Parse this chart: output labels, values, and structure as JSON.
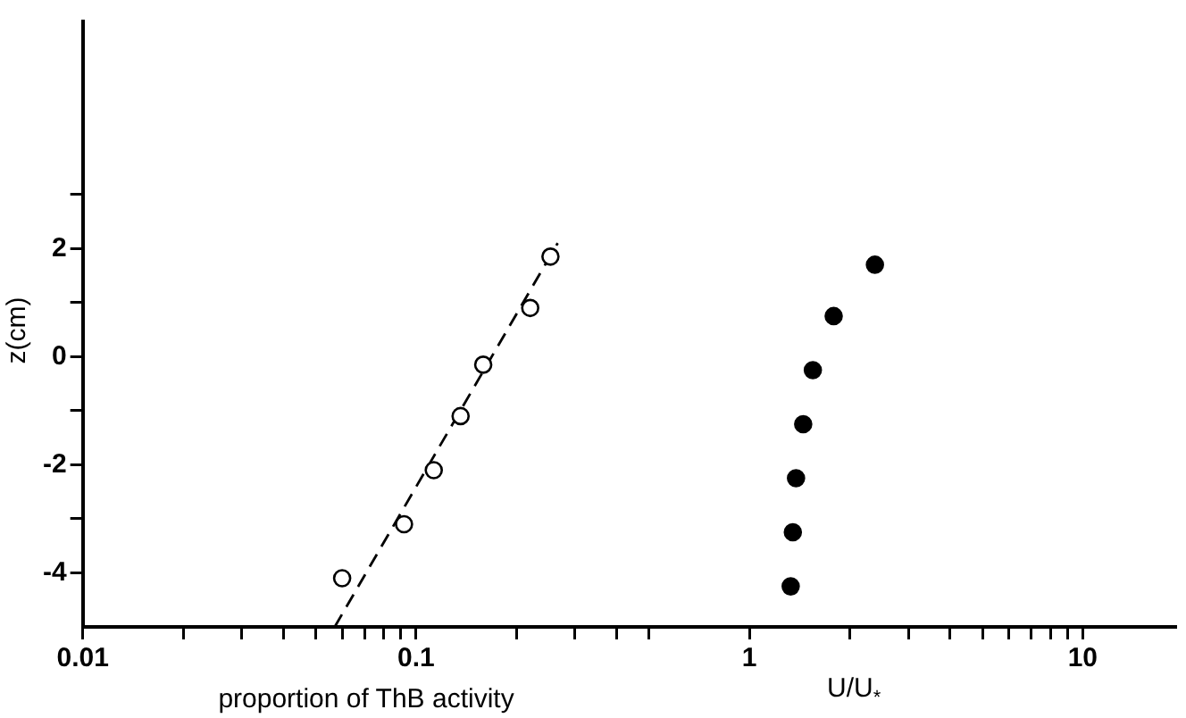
{
  "chart_data": {
    "type": "scatter",
    "xlabel": "proportion of ThB activity",
    "ylabel": "z(cm)",
    "annotations": [
      "U/U$_{*}$"
    ],
    "log": "x",
    "grid": false,
    "legend": false,
    "marker": "circle",
    "xlim": [
      0.01,
      19
    ],
    "ylim": [
      -5,
      6.2
    ],
    "xticks": [
      0.01,
      {
        "value": 0.02,
        "label": null
      },
      {
        "value": 0.03,
        "label": null
      },
      {
        "value": 0.04,
        "label": null
      },
      {
        "value": 0.05,
        "label": null
      },
      {
        "value": 0.06,
        "label": null
      },
      {
        "value": 0.07,
        "label": null
      },
      {
        "value": 0.08,
        "label": null
      },
      {
        "value": 0.09,
        "label": null
      },
      0.1,
      {
        "value": 0.2,
        "label": null
      },
      {
        "value": 0.3,
        "label": null
      },
      {
        "value": 0.4,
        "label": null
      },
      {
        "value": 0.5,
        "label": null
      },
      1,
      {
        "value": 2,
        "label": null
      },
      {
        "value": 3,
        "label": null
      },
      {
        "value": 4,
        "label": null
      },
      {
        "value": 5,
        "label": null
      },
      {
        "value": 6,
        "label": null
      },
      {
        "value": 7,
        "label": null
      },
      {
        "value": 8,
        "label": null
      },
      {
        "value": 9,
        "label": null
      },
      10
    ],
    "yticks": [
      -4,
      {
        "value": -3,
        "label": null
      },
      -2,
      {
        "value": -1,
        "label": null
      },
      0,
      {
        "value": 1,
        "label": null
      },
      2,
      {
        "value": 3,
        "label": null
      }
    ],
    "series": [
      {
        "marker": "circle-open",
        "color": "#000000",
        "x": [
          0.06,
          0.092,
          0.113,
          0.136,
          0.159,
          0.22,
          0.253
        ],
        "values": [
          -4.1,
          -3.1,
          -2.1,
          -1.1,
          -0.15,
          0.9,
          1.85
        ]
      },
      {
        "type": "line",
        "line_style": "dashed",
        "marker": "none",
        "color": "#000000",
        "x": [
          0.057,
          0.266
        ],
        "values": [
          -5,
          2.1
        ]
      },
      {
        "color": "#000000",
        "x": [
          1.33,
          1.35,
          1.38,
          1.45,
          1.55,
          1.79,
          2.38
        ],
        "values": [
          -4.25,
          -3.25,
          -2.25,
          -1.25,
          -0.25,
          0.75,
          1.7
        ]
      }
    ]
  }
}
